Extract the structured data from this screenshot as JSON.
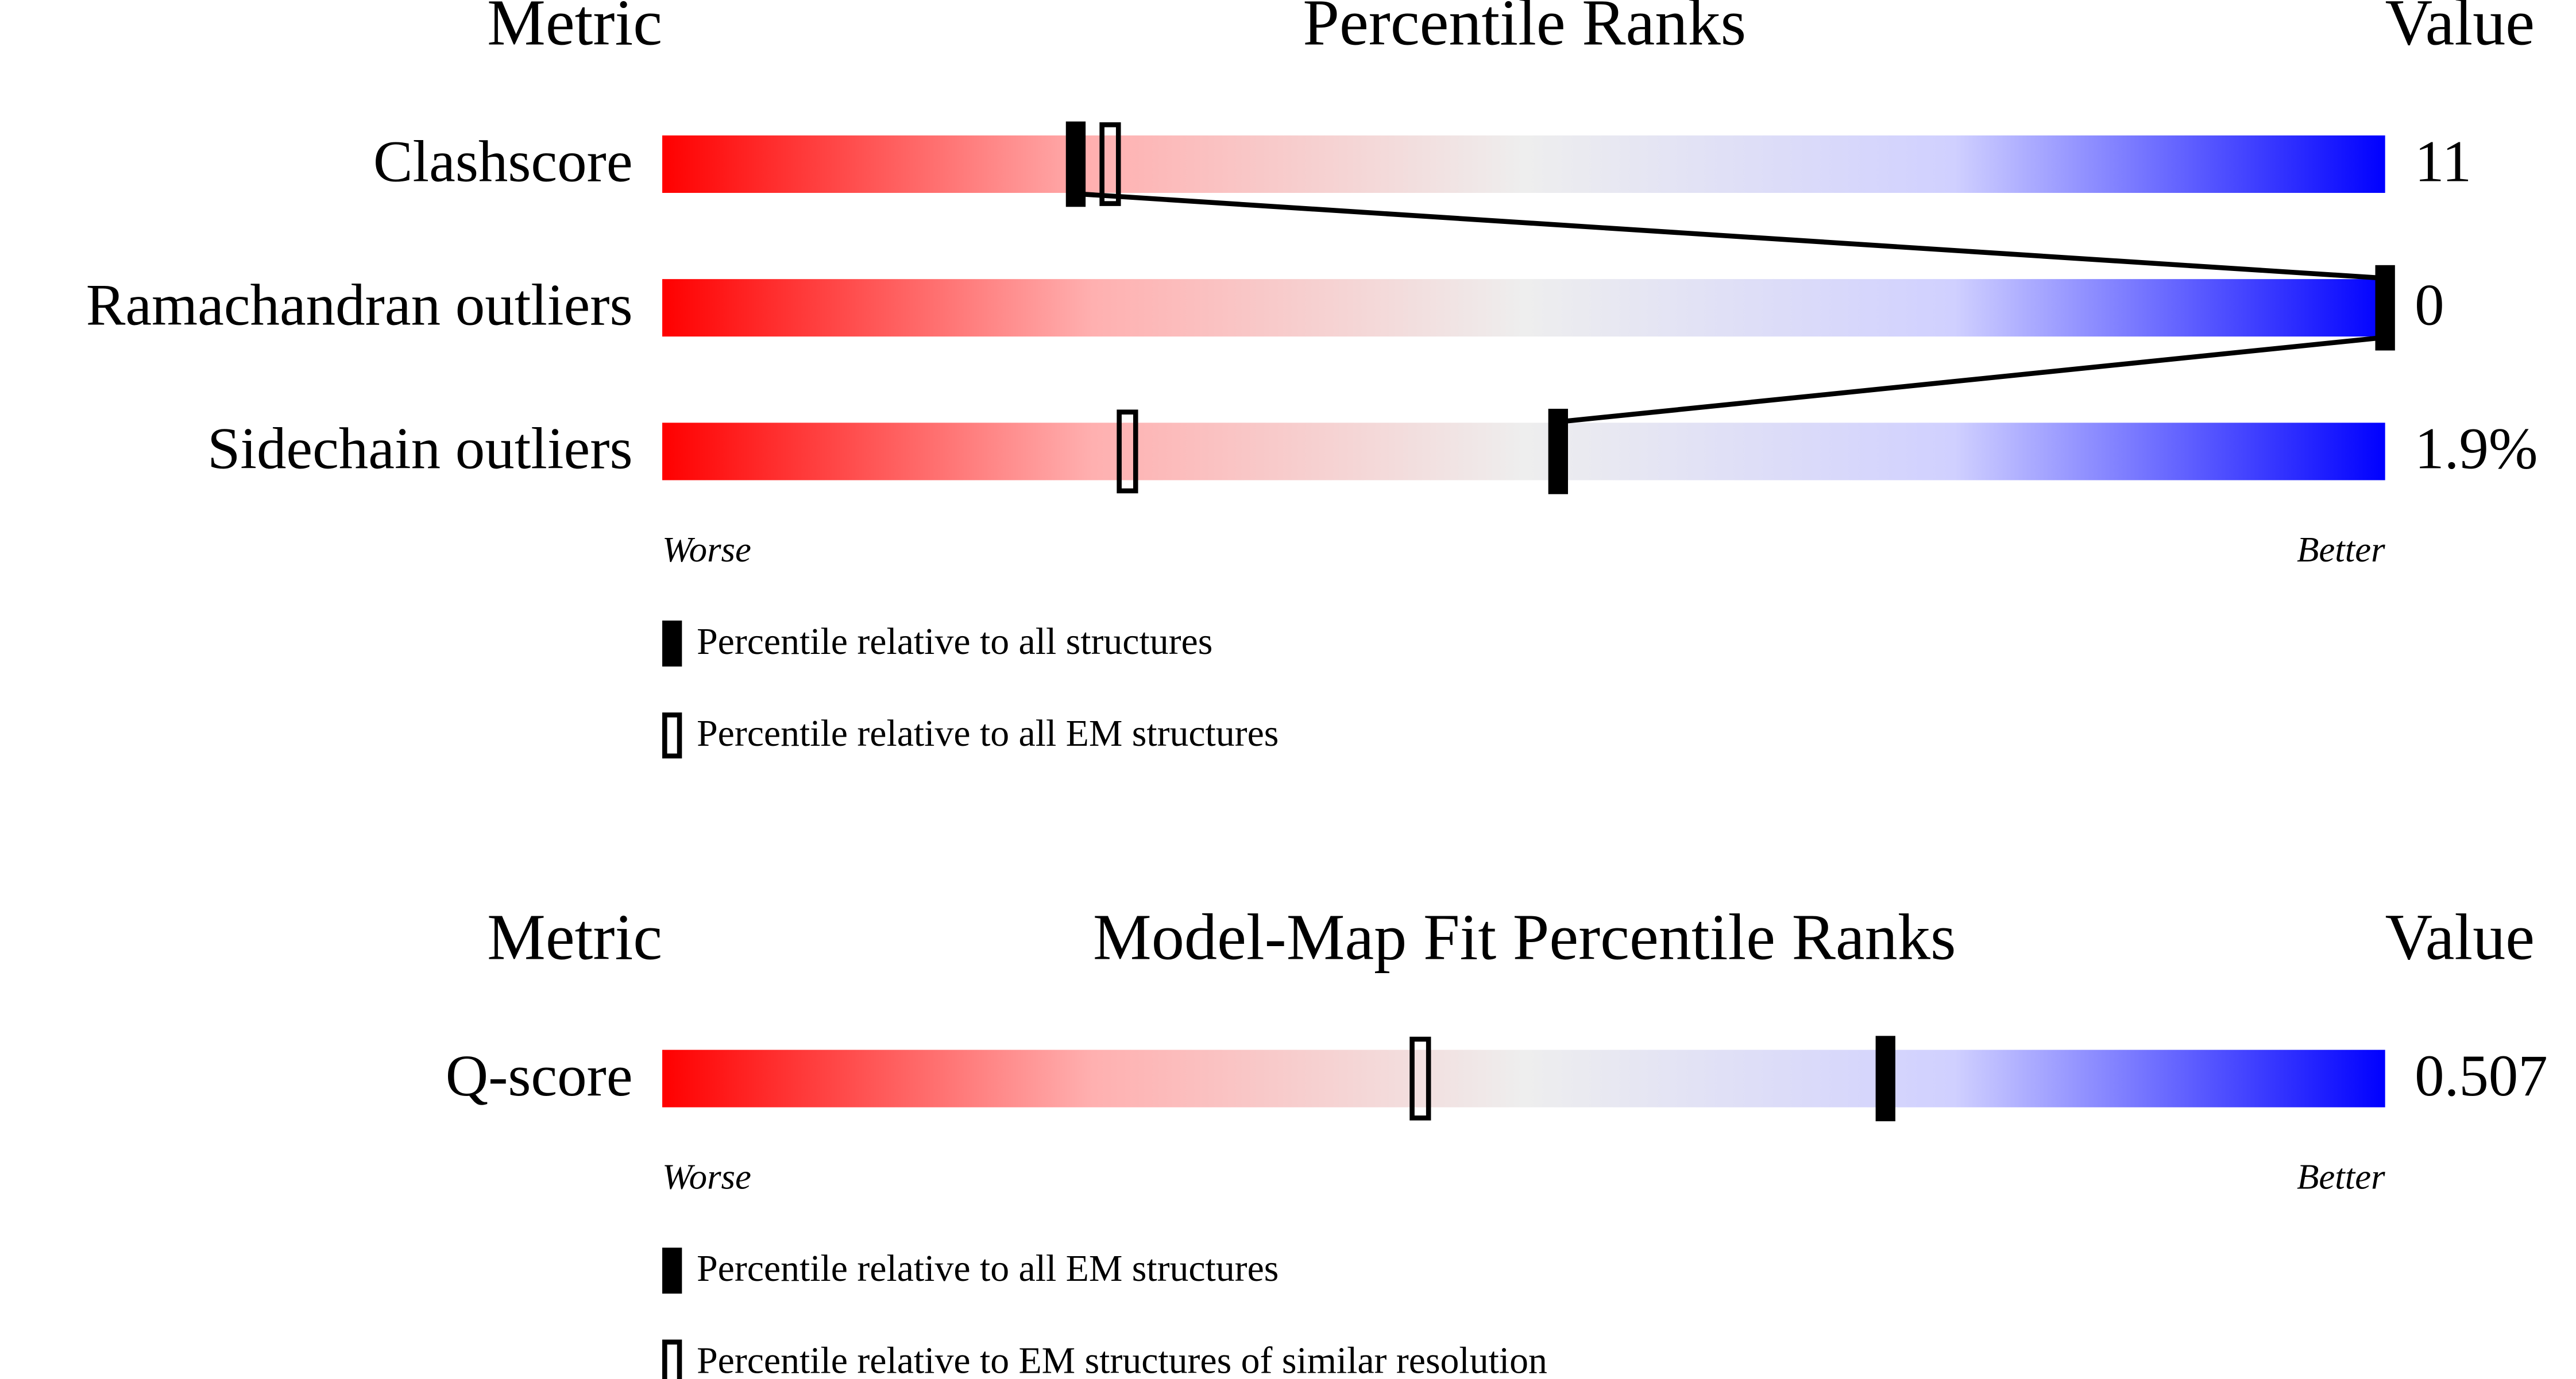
{
  "panels": [
    {
      "headers": {
        "metric": "Metric",
        "title": "Percentile Ranks",
        "value": "Value"
      },
      "xlim": [
        0,
        100
      ],
      "rows": [
        {
          "metric": "Clashscore",
          "value": "11",
          "filled": 24,
          "open": 26
        },
        {
          "metric": "Ramachandran outliers",
          "value": "0",
          "filled": 100
        },
        {
          "metric": "Sidechain outliers",
          "value": "1.9%",
          "filled": 52,
          "open": 27
        }
      ],
      "worse": "Worse",
      "better": "Better",
      "legend": {
        "filled": "Percentile relative to all structures",
        "open": "Percentile relative to all EM structures"
      }
    },
    {
      "headers": {
        "metric": "Metric",
        "title": "Model-Map Fit Percentile Ranks",
        "value": "Value"
      },
      "xlim": [
        0,
        100
      ],
      "rows": [
        {
          "metric": "Q-score",
          "value": "0.507",
          "filled": 71,
          "open": 44
        }
      ],
      "worse": "Worse",
      "better": "Better",
      "legend": {
        "filled": "Percentile relative to all EM structures",
        "open": "Percentile relative to EM structures of similar resolution"
      }
    }
  ]
}
